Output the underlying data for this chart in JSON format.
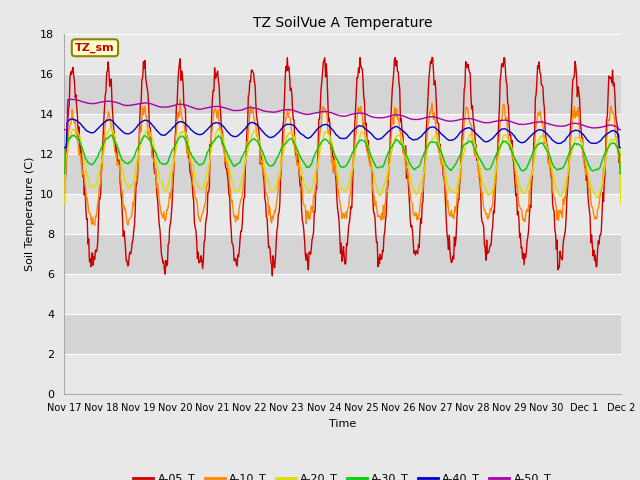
{
  "title": "TZ SoilVue A Temperature",
  "xlabel": "Time",
  "ylabel": "Soil Temperature (C)",
  "ylim": [
    0,
    18
  ],
  "yticks": [
    0,
    2,
    4,
    6,
    8,
    10,
    12,
    14,
    16,
    18
  ],
  "legend_label": "TZ_sm",
  "series_colors": {
    "A-05_T": "#cc0000",
    "A-10_T": "#ff8800",
    "A-20_T": "#dddd00",
    "A-30_T": "#00cc00",
    "A-40_T": "#0000cc",
    "A-50_T": "#aa00aa"
  },
  "date_labels": [
    "Nov 17",
    "Nov 18",
    "Nov 19",
    "Nov 20",
    "Nov 21",
    "Nov 22",
    "Nov 23",
    "Nov 24",
    "Nov 25",
    "Nov 26",
    "Nov 27",
    "Nov 28",
    "Nov 29",
    "Nov 30",
    "Dec 1",
    "Dec 2"
  ],
  "bg_color": "#dddddd",
  "plot_bg_color": "#e8e8e8",
  "band_colors": [
    "#e8e8e8",
    "#d4d4d4"
  ],
  "grid_color": "#cccccc"
}
